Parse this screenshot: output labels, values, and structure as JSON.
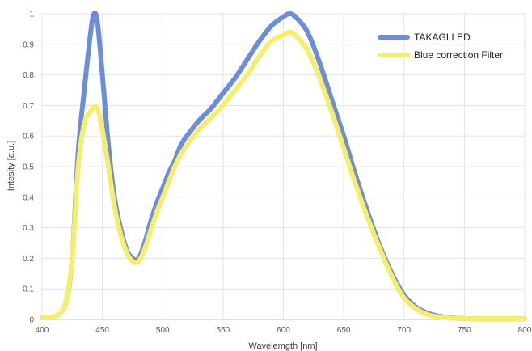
{
  "chart_data": {
    "type": "line",
    "title": "",
    "xlabel": "Wavelemgth [nm]",
    "ylabel": "Intesity [a.u.]",
    "xlim": [
      400,
      800
    ],
    "ylim": [
      0,
      1
    ],
    "x_ticks": [
      "400",
      "450",
      "500",
      "550",
      "600",
      "650",
      "700",
      "750",
      "800"
    ],
    "y_ticks": [
      "0",
      "0.1",
      "0.2",
      "0.3",
      "0.4",
      "0.5",
      "0.6",
      "0.7",
      "0.8",
      "0.9",
      "1"
    ],
    "grid": true,
    "legend_position": "top-right",
    "series": [
      {
        "name": "TAKAGI LED",
        "color": "#6b8ddc",
        "x": [
          400,
          410,
          415,
          420,
          425,
          430,
          435,
          440,
          443,
          446,
          450,
          455,
          460,
          465,
          470,
          475,
          480,
          485,
          490,
          495,
          500,
          505,
          510,
          515,
          520,
          530,
          540,
          550,
          560,
          570,
          580,
          590,
          600,
          605,
          610,
          620,
          630,
          640,
          650,
          660,
          670,
          680,
          690,
          700,
          710,
          720,
          730,
          740,
          750,
          760,
          800
        ],
        "y": [
          0.005,
          0.01,
          0.02,
          0.06,
          0.2,
          0.55,
          0.75,
          0.93,
          1.0,
          0.97,
          0.8,
          0.57,
          0.4,
          0.3,
          0.23,
          0.2,
          0.2,
          0.25,
          0.32,
          0.38,
          0.43,
          0.48,
          0.52,
          0.57,
          0.6,
          0.65,
          0.69,
          0.74,
          0.79,
          0.85,
          0.91,
          0.96,
          0.99,
          1.0,
          0.99,
          0.94,
          0.84,
          0.72,
          0.6,
          0.47,
          0.35,
          0.24,
          0.15,
          0.08,
          0.04,
          0.02,
          0.01,
          0.005,
          0.003,
          0.002,
          0.002
        ]
      },
      {
        "name": "Blue correction Filter",
        "color": "#f6ee6a",
        "x": [
          400,
          410,
          415,
          420,
          425,
          430,
          435,
          440,
          443,
          446,
          450,
          455,
          460,
          465,
          470,
          475,
          480,
          485,
          490,
          495,
          500,
          505,
          510,
          515,
          520,
          530,
          540,
          550,
          560,
          570,
          580,
          590,
          600,
          605,
          610,
          620,
          630,
          640,
          650,
          660,
          670,
          680,
          690,
          700,
          710,
          720,
          730,
          740,
          750,
          760,
          800
        ],
        "y": [
          0.005,
          0.01,
          0.02,
          0.06,
          0.2,
          0.5,
          0.64,
          0.68,
          0.695,
          0.69,
          0.62,
          0.5,
          0.37,
          0.28,
          0.22,
          0.19,
          0.19,
          0.23,
          0.29,
          0.35,
          0.4,
          0.45,
          0.5,
          0.54,
          0.57,
          0.62,
          0.66,
          0.7,
          0.75,
          0.8,
          0.86,
          0.91,
          0.93,
          0.94,
          0.93,
          0.88,
          0.79,
          0.68,
          0.56,
          0.44,
          0.33,
          0.23,
          0.14,
          0.07,
          0.035,
          0.015,
          0.008,
          0.004,
          0.003,
          0.002,
          0.002
        ]
      }
    ]
  }
}
